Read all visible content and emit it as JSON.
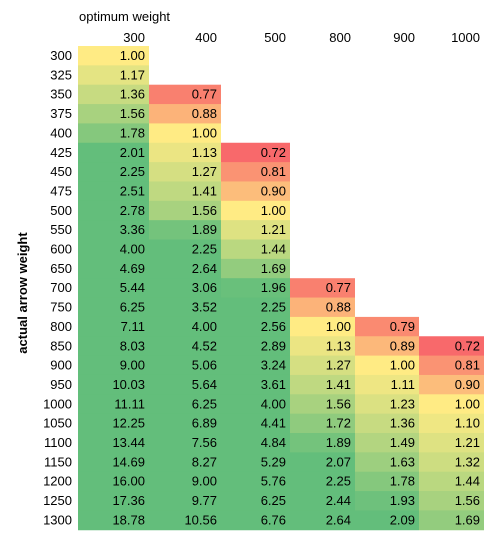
{
  "chart_data": {
    "type": "heatmap",
    "title": "optimum weight",
    "xlabel": "optimum weight",
    "ylabel": "actual arrow weight",
    "columns": [
      "300",
      "400",
      "500",
      "800",
      "900",
      "1000"
    ],
    "rows": [
      "300",
      "325",
      "350",
      "375",
      "400",
      "425",
      "450",
      "475",
      "500",
      "550",
      "600",
      "650",
      "700",
      "750",
      "800",
      "850",
      "900",
      "950",
      "1000",
      "1050",
      "1100",
      "1150",
      "1200",
      "1250",
      "1300"
    ],
    "values": [
      [
        "1.00",
        null,
        null,
        null,
        null,
        null
      ],
      [
        "1.17",
        null,
        null,
        null,
        null,
        null
      ],
      [
        "1.36",
        "0.77",
        null,
        null,
        null,
        null
      ],
      [
        "1.56",
        "0.88",
        null,
        null,
        null,
        null
      ],
      [
        "1.78",
        "1.00",
        null,
        null,
        null,
        null
      ],
      [
        "2.01",
        "1.13",
        "0.72",
        null,
        null,
        null
      ],
      [
        "2.25",
        "1.27",
        "0.81",
        null,
        null,
        null
      ],
      [
        "2.51",
        "1.41",
        "0.90",
        null,
        null,
        null
      ],
      [
        "2.78",
        "1.56",
        "1.00",
        null,
        null,
        null
      ],
      [
        "3.36",
        "1.89",
        "1.21",
        null,
        null,
        null
      ],
      [
        "4.00",
        "2.25",
        "1.44",
        null,
        null,
        null
      ],
      [
        "4.69",
        "2.64",
        "1.69",
        null,
        null,
        null
      ],
      [
        "5.44",
        "3.06",
        "1.96",
        "0.77",
        null,
        null
      ],
      [
        "6.25",
        "3.52",
        "2.25",
        "0.88",
        null,
        null
      ],
      [
        "7.11",
        "4.00",
        "2.56",
        "1.00",
        "0.79",
        null
      ],
      [
        "8.03",
        "4.52",
        "2.89",
        "1.13",
        "0.89",
        "0.72"
      ],
      [
        "9.00",
        "5.06",
        "3.24",
        "1.27",
        "1.00",
        "0.81"
      ],
      [
        "10.03",
        "5.64",
        "3.61",
        "1.41",
        "1.11",
        "0.90"
      ],
      [
        "11.11",
        "6.25",
        "4.00",
        "1.56",
        "1.23",
        "1.00"
      ],
      [
        "12.25",
        "6.89",
        "4.41",
        "1.72",
        "1.36",
        "1.10"
      ],
      [
        "13.44",
        "7.56",
        "4.84",
        "1.89",
        "1.49",
        "1.21"
      ],
      [
        "14.69",
        "8.27",
        "5.29",
        "2.07",
        "1.63",
        "1.32"
      ],
      [
        "16.00",
        "9.00",
        "5.76",
        "2.25",
        "1.78",
        "1.44"
      ],
      [
        "17.36",
        "9.77",
        "6.25",
        "2.44",
        "1.93",
        "1.56"
      ],
      [
        "18.78",
        "10.56",
        "6.76",
        "2.64",
        "2.09",
        "1.69"
      ]
    ],
    "color_scale": {
      "low": "#f8696b",
      "mid_low": "#fbaa77",
      "mid": "#ffeb84",
      "mid_high": "#b1d580",
      "high": "#63be7b",
      "stops": [
        0.72,
        0.86,
        1.0,
        1.5,
        2.0
      ]
    }
  }
}
